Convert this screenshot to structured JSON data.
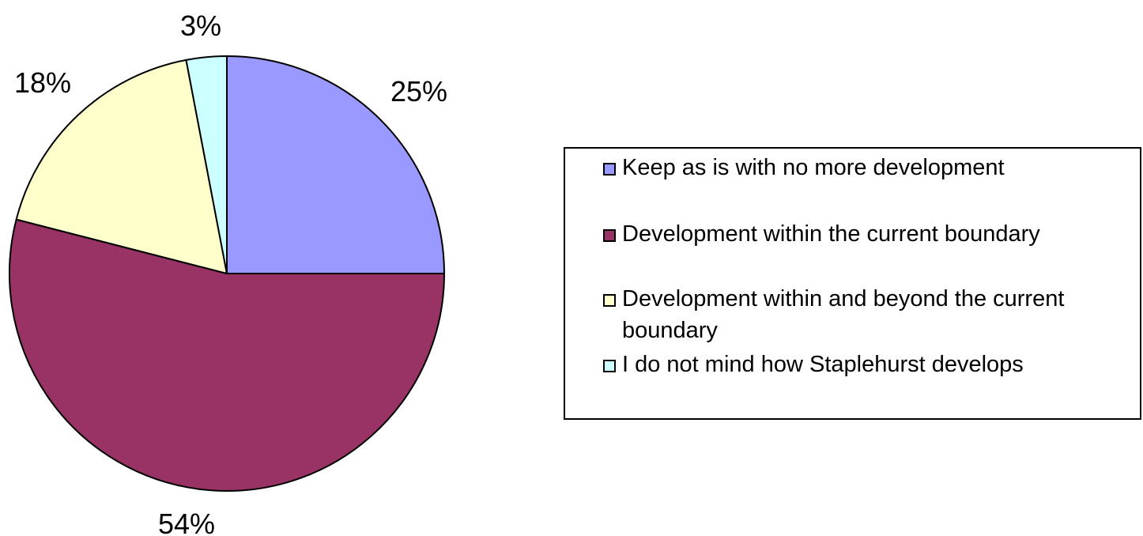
{
  "chart_data": {
    "type": "pie",
    "slices": [
      {
        "label": "Keep as is with no more development",
        "value": 25,
        "value_label": "25%",
        "color": "#9999ff"
      },
      {
        "label": "Development within the current boundary",
        "value": 54,
        "value_label": "54%",
        "color": "#993366"
      },
      {
        "label": "Development within and beyond the current boundary",
        "value": 18,
        "value_label": "18%",
        "color": "#ffffcc"
      },
      {
        "label": "I do not mind how Staplehurst develops",
        "value": 3,
        "value_label": "3%",
        "color": "#ccffff"
      }
    ],
    "start_angle": "12 o'clock",
    "direction": "clockwise",
    "legend_position": "right"
  }
}
